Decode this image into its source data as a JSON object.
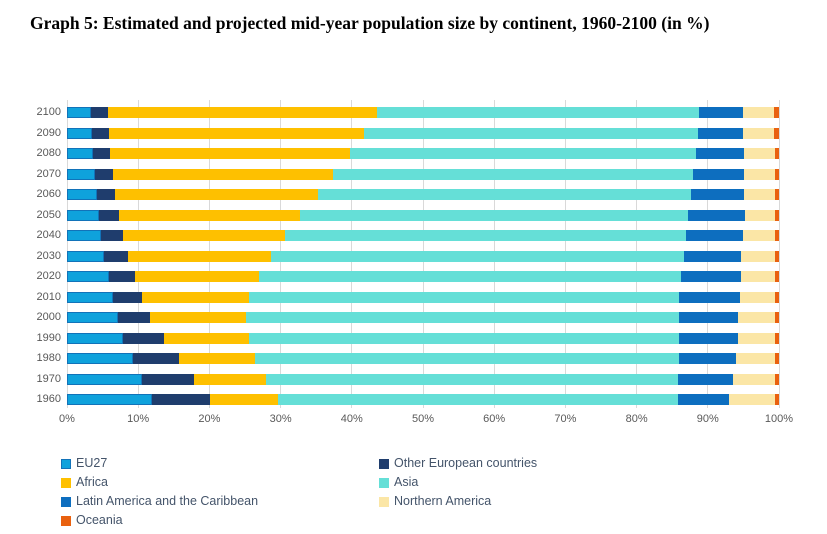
{
  "title": "Graph 5: Estimated and projected mid-year population size by continent, 1960-2100 (in %)",
  "colors": {
    "background": "#ffffff",
    "gridline": "#d9d9d9",
    "axis_text": "#595959",
    "legend_text": "#44546a",
    "eu27_border": "#1273b9"
  },
  "chart_data": {
    "type": "bar",
    "orientation": "horizontal",
    "stacked": true,
    "unit": "%",
    "title": "Graph 5: Estimated and projected mid-year population size by continent, 1960-2100 (in %)",
    "xlabel": "",
    "ylabel": "",
    "xlim": [
      0,
      100
    ],
    "grid": "vertical",
    "legend_position": "bottom",
    "legend_columns": 2,
    "x_ticks": [
      "0%",
      "10%",
      "20%",
      "30%",
      "40%",
      "50%",
      "60%",
      "70%",
      "80%",
      "90%",
      "100%"
    ],
    "categories": [
      "2100",
      "2090",
      "2080",
      "2070",
      "2060",
      "2050",
      "2040",
      "2030",
      "2020",
      "2010",
      "2000",
      "1990",
      "1980",
      "1970",
      "1960"
    ],
    "series": [
      {
        "name": "EU27",
        "color": "#0fa2dc",
        "values": [
          3.4,
          3.5,
          3.6,
          3.9,
          4.2,
          4.5,
          4.8,
          5.2,
          5.9,
          6.5,
          7.2,
          7.9,
          9.3,
          10.5,
          11.9
        ]
      },
      {
        "name": "Other European countries",
        "color": "#1f3d6d",
        "values": [
          2.4,
          2.4,
          2.5,
          2.5,
          2.5,
          2.8,
          3.1,
          3.4,
          3.7,
          4.0,
          4.5,
          5.7,
          6.4,
          7.3,
          8.2
        ]
      },
      {
        "name": "Africa",
        "color": "#fec000",
        "values": [
          37.7,
          35.8,
          33.6,
          31.0,
          28.5,
          25.4,
          22.7,
          20.1,
          17.3,
          15.0,
          13.4,
          12.0,
          10.7,
          10.1,
          9.5
        ]
      },
      {
        "name": "Asia",
        "color": "#65dfd7",
        "values": [
          45.3,
          46.9,
          48.7,
          50.5,
          52.4,
          54.5,
          56.4,
          57.9,
          59.4,
          60.5,
          60.8,
          60.4,
          59.5,
          57.9,
          56.2
        ]
      },
      {
        "name": "Latin America and the Caribbean",
        "color": "#0d6ebf",
        "values": [
          6.1,
          6.4,
          6.7,
          7.2,
          7.5,
          8.0,
          8.0,
          8.1,
          8.4,
          8.5,
          8.4,
          8.3,
          8.1,
          7.7,
          7.2
        ]
      },
      {
        "name": "Northern America",
        "color": "#fbe6a6",
        "values": [
          4.4,
          4.3,
          4.3,
          4.3,
          4.3,
          4.2,
          4.4,
          4.7,
          4.7,
          5.0,
          5.2,
          5.2,
          5.5,
          6.0,
          6.5
        ]
      },
      {
        "name": "Oceania",
        "color": "#e9610f",
        "values": [
          0.7,
          0.7,
          0.6,
          0.6,
          0.6,
          0.6,
          0.6,
          0.6,
          0.6,
          0.5,
          0.5,
          0.5,
          0.5,
          0.5,
          0.5
        ]
      }
    ]
  }
}
